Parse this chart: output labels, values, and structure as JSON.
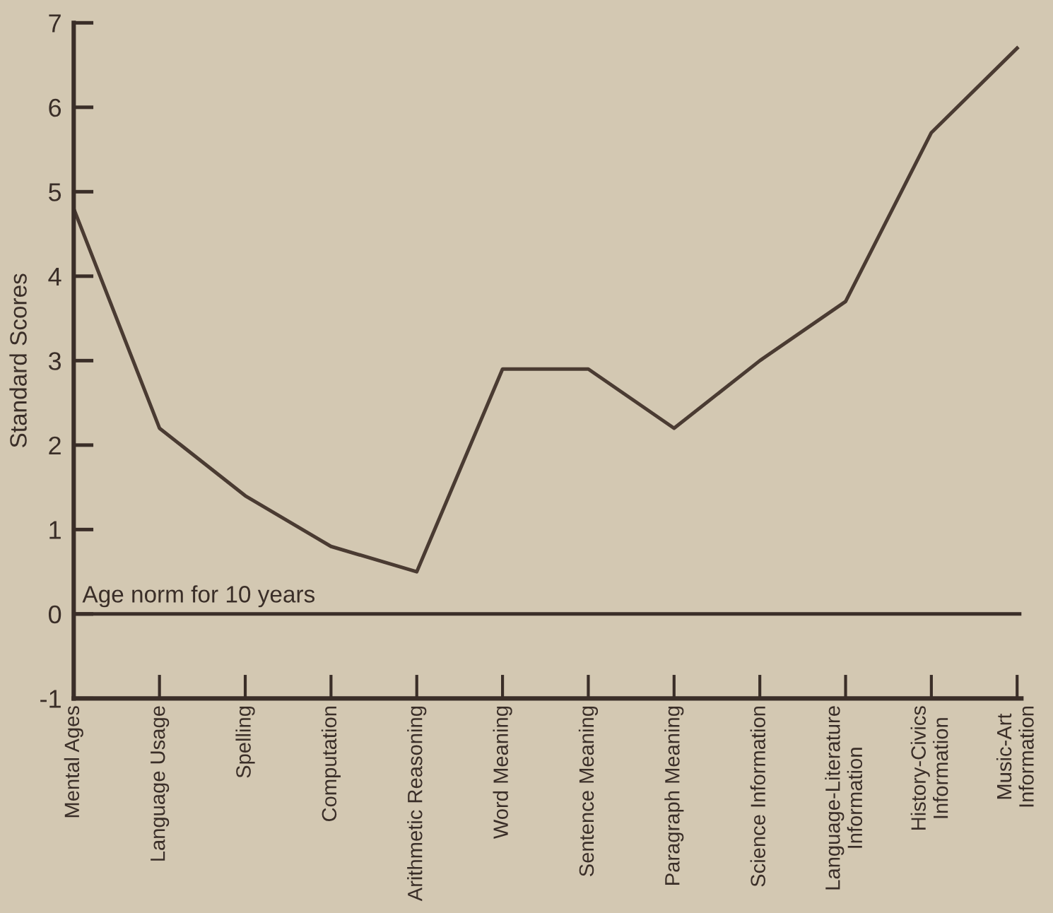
{
  "chart_data": {
    "type": "line",
    "ylabel": "Standard Scores",
    "categories": [
      "Mental Ages",
      "Language Usage",
      "Spelling",
      "Computation",
      "Arithmetic Reasoning",
      "Word Meaning",
      "Sentence Meaning",
      "Paragraph Meaning",
      "Science Information",
      "Language-Literature\nInformation",
      "History-Civics\nInformation",
      "Music-Art\nInformation"
    ],
    "series": [
      {
        "color": "#4a3b32",
        "values": [
          4.8,
          2.2,
          1.4,
          0.8,
          0.5,
          2.9,
          2.9,
          2.2,
          3.0,
          3.7,
          5.7,
          6.7
        ]
      }
    ],
    "ylim": [
      -1,
      7
    ],
    "yticks": [
      -1,
      0,
      1,
      2,
      3,
      4,
      5,
      6,
      7
    ],
    "ref_lines": [
      {
        "axis": "y",
        "value": 0,
        "label": "Age norm for 10 years",
        "color": "#3a2e28",
        "line_style": "solid"
      }
    ],
    "grid": false,
    "legend": false,
    "marker": "none",
    "line_style": "solid"
  }
}
